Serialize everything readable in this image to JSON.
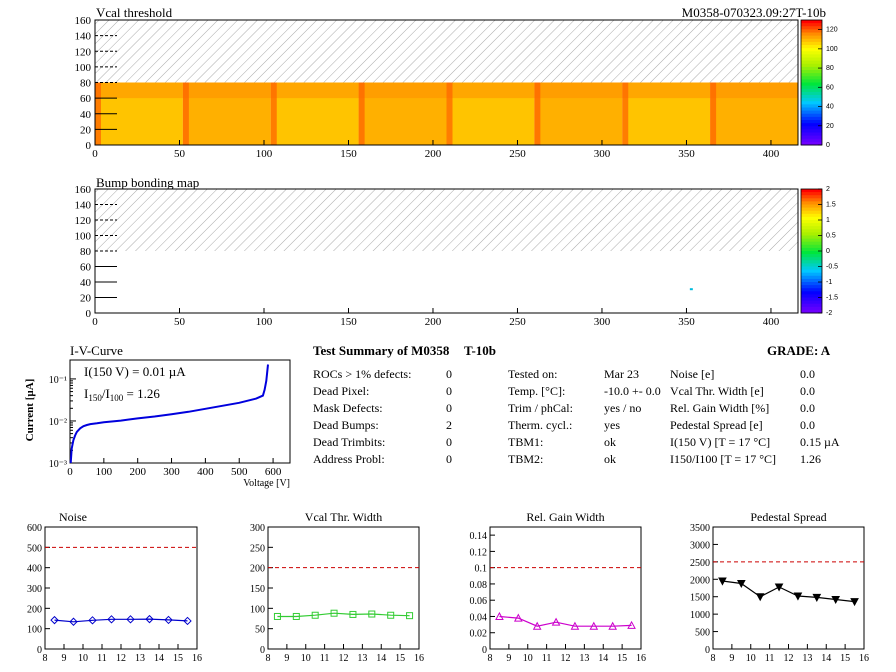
{
  "heatmaps": [
    {
      "title": "Vcal threshold",
      "id_label": "M0358-070323.09:27T-10b",
      "x_ticks": [
        "0",
        "50",
        "100",
        "150",
        "200",
        "250",
        "300",
        "350",
        "400"
      ],
      "y_ticks": [
        "0",
        "20",
        "40",
        "60",
        "80",
        "100",
        "120",
        "140",
        "160"
      ],
      "z_ticks": [
        "0",
        "20",
        "40",
        "60",
        "80",
        "100",
        "120"
      ],
      "xlim": [
        0,
        416
      ],
      "ylim": [
        0,
        160
      ],
      "zlim": [
        0,
        130
      ]
    },
    {
      "title": "Bump bonding map",
      "x_ticks": [
        "0",
        "50",
        "100",
        "150",
        "200",
        "250",
        "300",
        "350",
        "400"
      ],
      "y_ticks": [
        "0",
        "20",
        "40",
        "60",
        "80",
        "100",
        "120",
        "140",
        "160"
      ],
      "z_ticks": [
        "-2",
        "-1.5",
        "-1",
        "-0.5",
        "0",
        "0.5",
        "1",
        "1.5",
        "2"
      ],
      "xlim": [
        0,
        416
      ],
      "ylim": [
        0,
        160
      ],
      "zlim": [
        -2,
        2
      ]
    }
  ],
  "iv": {
    "title": "I-V-Curve",
    "ylabel": "Current [µA]",
    "xlabel": "Voltage [V]",
    "y_ticks": [
      "10⁻³",
      "10⁻²",
      "10⁻¹"
    ],
    "x_ticks": [
      "0",
      "100",
      "200",
      "300",
      "400",
      "500",
      "600"
    ],
    "annotation1": "I(150 V) = 0.01 µA",
    "annotation2_prefix": "I",
    "annotation2_sub1": "150",
    "annotation2_mid": "/I",
    "annotation2_sub2": "100",
    "annotation2_value": " =  1.26"
  },
  "summary": {
    "title": "Test Summary of M0358",
    "tb": "T-10b",
    "grade": "GRADE:  A",
    "col1": [
      {
        "label": "ROCs > 1% defects:",
        "value": "0"
      },
      {
        "label": "Dead Pixel:",
        "value": "0"
      },
      {
        "label": "Mask Defects:",
        "value": "0"
      },
      {
        "label": "Dead Bumps:",
        "value": "2"
      },
      {
        "label": "Dead Trimbits:",
        "value": "0"
      },
      {
        "label": "Address Probl:",
        "value": "0"
      }
    ],
    "col2": [
      {
        "label": "Tested on:",
        "value": "Mar 23"
      },
      {
        "label": "Temp. [°C]:",
        "value": "-10.0 +- 0.0"
      },
      {
        "label": "Trim / phCal:",
        "value": "yes / no"
      },
      {
        "label": "Therm. cycl.:",
        "value": "yes"
      },
      {
        "label": "TBM1:",
        "value": "ok"
      },
      {
        "label": "TBM2:",
        "value": "ok"
      }
    ],
    "col3": [
      {
        "label": "Noise [e]",
        "value": "0.0"
      },
      {
        "label": "Vcal Thr. Width [e]",
        "value": "0.0"
      },
      {
        "label": "Rel. Gain Width [%]",
        "value": "0.0"
      },
      {
        "label": "Pedestal Spread [e]",
        "value": "0.0"
      },
      {
        "label": "I(150 V) [T = 17 °C]",
        "value": "0.15 µA"
      },
      {
        "label": "I150/I100  [T = 17 °C]",
        "value": "1.26"
      }
    ]
  },
  "chart_data": [
    {
      "type": "line",
      "title": "Noise",
      "x": [
        8.5,
        9.5,
        10.5,
        11.5,
        12.5,
        13.5,
        14.5,
        15.5
      ],
      "values": [
        142,
        134,
        141,
        146,
        146,
        147,
        143,
        138
      ],
      "ylim": [
        0,
        600
      ],
      "xlim": [
        8,
        16
      ],
      "x_ticks": [
        "8",
        "9",
        "10",
        "11",
        "12",
        "13",
        "14",
        "15",
        "16"
      ],
      "y_ticks": [
        "0",
        "100",
        "200",
        "300",
        "400",
        "500",
        "600"
      ],
      "threshold": 500,
      "color": "#0000cc",
      "marker": "diamond"
    },
    {
      "type": "line",
      "title": "Vcal Thr. Width",
      "x": [
        8.5,
        9.5,
        10.5,
        11.5,
        12.5,
        13.5,
        14.5,
        15.5
      ],
      "values": [
        80,
        80,
        83,
        88,
        85,
        86,
        83,
        82
      ],
      "ylim": [
        0,
        300
      ],
      "xlim": [
        8,
        16
      ],
      "x_ticks": [
        "8",
        "9",
        "10",
        "11",
        "12",
        "13",
        "14",
        "15",
        "16"
      ],
      "y_ticks": [
        "0",
        "50",
        "100",
        "150",
        "200",
        "250",
        "300"
      ],
      "threshold": 200,
      "color": "#33cc33",
      "marker": "square"
    },
    {
      "type": "line",
      "title": "Rel. Gain Width",
      "x": [
        8.5,
        9.5,
        10.5,
        11.5,
        12.5,
        13.5,
        14.5,
        15.5
      ],
      "values": [
        0.04,
        0.038,
        0.028,
        0.033,
        0.028,
        0.028,
        0.028,
        0.029
      ],
      "ylim": [
        0,
        0.15
      ],
      "xlim": [
        8,
        16
      ],
      "x_ticks": [
        "8",
        "9",
        "10",
        "11",
        "12",
        "13",
        "14",
        "15",
        "16"
      ],
      "y_ticks": [
        "0",
        "0.02",
        "0.04",
        "0.06",
        "0.08",
        "0.1",
        "0.12",
        "0.14"
      ],
      "threshold": 0.1,
      "color": "#cc00cc",
      "marker": "triangle"
    },
    {
      "type": "line",
      "title": "Pedestal Spread",
      "x": [
        8.5,
        9.5,
        10.5,
        11.5,
        12.5,
        13.5,
        14.5,
        15.5
      ],
      "values": [
        1950,
        1880,
        1500,
        1780,
        1520,
        1480,
        1420,
        1360
      ],
      "ylim": [
        0,
        3500
      ],
      "xlim": [
        8,
        16
      ],
      "x_ticks": [
        "8",
        "9",
        "10",
        "11",
        "12",
        "13",
        "14",
        "15",
        "16"
      ],
      "y_ticks": [
        "0",
        "500",
        "1000",
        "1500",
        "2000",
        "2500",
        "3000",
        "3500"
      ],
      "threshold": 2500,
      "color": "#000000",
      "marker": "triangle-down"
    }
  ]
}
